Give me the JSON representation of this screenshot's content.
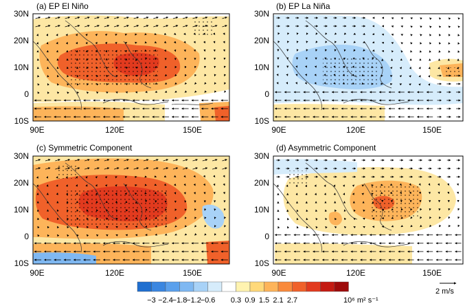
{
  "panels": [
    {
      "label": "(a)  EP El Niño",
      "key": "a"
    },
    {
      "label": "(b)  EP La Niña",
      "key": "b"
    },
    {
      "label": "(c)  Symmetric Component",
      "key": "c"
    },
    {
      "label": "(d)  Asymmetric Component",
      "key": "d"
    }
  ],
  "lat_ticks": [
    "30N",
    "20N",
    "10N",
    "0",
    "10S"
  ],
  "lon_ticks": [
    "90E",
    "120E",
    "150E"
  ],
  "colorbar": {
    "ticks": [
      "−3",
      "−2.4",
      "−1.8",
      "−1.2",
      "−0.6",
      "0.3",
      "0.9",
      "1.5",
      "2.1",
      "2.7"
    ],
    "unit": "10⁶ m² s⁻¹",
    "colors": [
      "#1f6fd0",
      "#3a86e0",
      "#5aa0ec",
      "#7fb8f2",
      "#a8d2f7",
      "#d6ecfb",
      "#ffffff",
      "#fff3b0",
      "#ffd97a",
      "#fdb45a",
      "#f98a3c",
      "#f0612a",
      "#e23a1e",
      "#c41a12",
      "#9e0a0a"
    ]
  },
  "reference_vector": {
    "label": "2 m/s"
  },
  "colors": {
    "orange_light": "#fde7a4",
    "orange_mid": "#fdb45a",
    "orange_deep": "#f0612a",
    "red_core": "#e23a1e",
    "blue_light": "#d6ecfb",
    "blue_mid": "#a8d2f7",
    "blue_deep": "#7fb8f2"
  }
}
